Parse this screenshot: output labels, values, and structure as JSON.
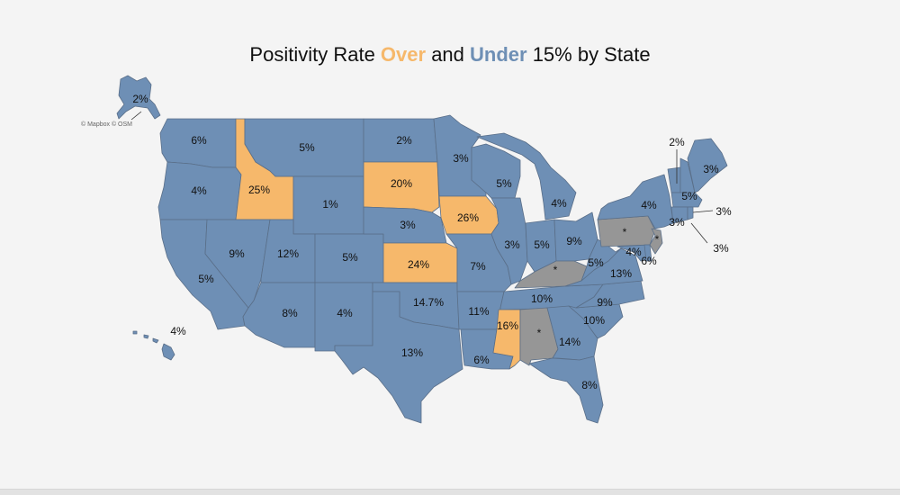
{
  "title": {
    "prefix": "Positivity Rate ",
    "over": "Over",
    "middle": " and ",
    "under": "Under",
    "suffix": " 15% by State"
  },
  "attribution": "© Mapbox © OSM",
  "colors": {
    "over": "#f6b86b",
    "under": "#6e8fb5",
    "no_data": "#969696",
    "border": "#5a6f89",
    "background": "#f4f4f4"
  },
  "labels": {
    "AK": "2%",
    "HI": "4%",
    "WA": "6%",
    "OR": "4%",
    "CA": "5%",
    "ID": "25%",
    "NV": "9%",
    "MT": "5%",
    "WY": "1%",
    "UT": "12%",
    "AZ": "8%",
    "CO": "5%",
    "NM": "4%",
    "ND": "2%",
    "SD": "20%",
    "NE": "3%",
    "KS": "24%",
    "OK": "14.7%",
    "TX": "13%",
    "MN": "3%",
    "IA": "26%",
    "MO": "7%",
    "AR": "11%",
    "LA": "6%",
    "WI": "5%",
    "IL": "3%",
    "MI": "4%",
    "IN": "5%",
    "OH": "9%",
    "KY": "*",
    "TN": "10%",
    "MS": "16%",
    "AL": "*",
    "GA": "14%",
    "FL": "8%",
    "SC": "10%",
    "NC": "9%",
    "VA": "13%",
    "WV": "5%",
    "PA": "*",
    "NY": "4%",
    "VT": "2%",
    "NH": "5%",
    "ME": "3%",
    "MA": "3%",
    "RI": "3%",
    "CT": "3%",
    "NJ": "*",
    "MD": "4%",
    "DE": "6%"
  }
}
